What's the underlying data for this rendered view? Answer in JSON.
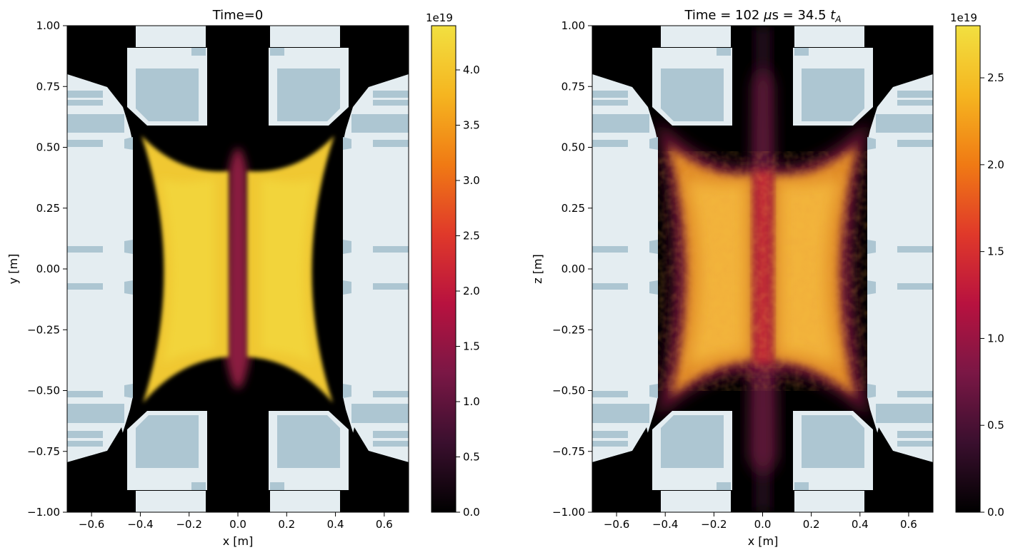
{
  "chart_data": [
    {
      "type": "heatmap",
      "title": "Time=0",
      "xlabel": "x [m]",
      "ylabel": "y [m]",
      "xlim": [
        -0.7,
        0.7
      ],
      "ylim": [
        -1.0,
        1.0
      ],
      "xticks": [
        "−0.6",
        "−0.4",
        "−0.2",
        "0.0",
        "0.2",
        "0.4",
        "0.6"
      ],
      "xtick_values": [
        -0.6,
        -0.4,
        -0.2,
        0.0,
        0.2,
        0.4,
        0.6
      ],
      "yticks": [
        "1.00",
        "0.75",
        "0.50",
        "0.25",
        "0.00",
        "−0.25",
        "−0.50",
        "−0.75",
        "−1.00"
      ],
      "ytick_values": [
        1.0,
        0.75,
        0.5,
        0.25,
        0.0,
        -0.25,
        -0.5,
        -0.75,
        -1.0
      ],
      "colorbar": {
        "multiplier": "1e19",
        "range": [
          0,
          4.4
        ],
        "ticks": [
          "0.0",
          "0.5",
          "1.0",
          "1.5",
          "2.0",
          "2.5",
          "3.0",
          "3.5",
          "4.0"
        ],
        "tick_values": [
          0,
          0.5,
          1.0,
          1.5,
          2.0,
          2.5,
          3.0,
          3.5,
          4.0
        ],
        "colormap": [
          "#000000",
          "#3a0f2e",
          "#7a1745",
          "#b8123f",
          "#e0392a",
          "#f07a14",
          "#f5b520",
          "#f2e040"
        ]
      },
      "core_peak_value": 4.2,
      "center_column_value": 2.0
    },
    {
      "type": "heatmap",
      "title_parts": [
        "Time = 102 ",
        "μ",
        "s = 34.5 ",
        "t",
        "A"
      ],
      "xlabel": "x [m]",
      "ylabel": "z [m]",
      "xlim": [
        -0.7,
        0.7
      ],
      "ylim": [
        -1.0,
        1.0
      ],
      "xticks": [
        "−0.6",
        "−0.4",
        "−0.2",
        "0.0",
        "0.2",
        "0.4",
        "0.6"
      ],
      "xtick_values": [
        -0.6,
        -0.4,
        -0.2,
        0.0,
        0.2,
        0.4,
        0.6
      ],
      "yticks": [
        "1.00",
        "0.75",
        "0.50",
        "0.25",
        "0.00",
        "−0.25",
        "−0.50",
        "−0.75",
        "−1.00"
      ],
      "ytick_values": [
        1.0,
        0.75,
        0.5,
        0.25,
        0.0,
        -0.25,
        -0.5,
        -0.75,
        -1.0
      ],
      "colorbar": {
        "multiplier": "1e19",
        "range": [
          0,
          2.8
        ],
        "ticks": [
          "0.0",
          "0.5",
          "1.0",
          "1.5",
          "2.0",
          "2.5"
        ],
        "tick_values": [
          0,
          0.5,
          1.0,
          1.5,
          2.0,
          2.5
        ],
        "colormap": [
          "#000000",
          "#3a0f2e",
          "#7a1745",
          "#b8123f",
          "#e0392a",
          "#f07a14",
          "#f5b520",
          "#f2e040"
        ]
      },
      "core_peak_value": 2.2,
      "center_column_value": 1.3
    }
  ],
  "colors": {
    "vessel_fill": "#e4edf1",
    "vessel_component": "#adc6d2",
    "background": "#000000"
  }
}
